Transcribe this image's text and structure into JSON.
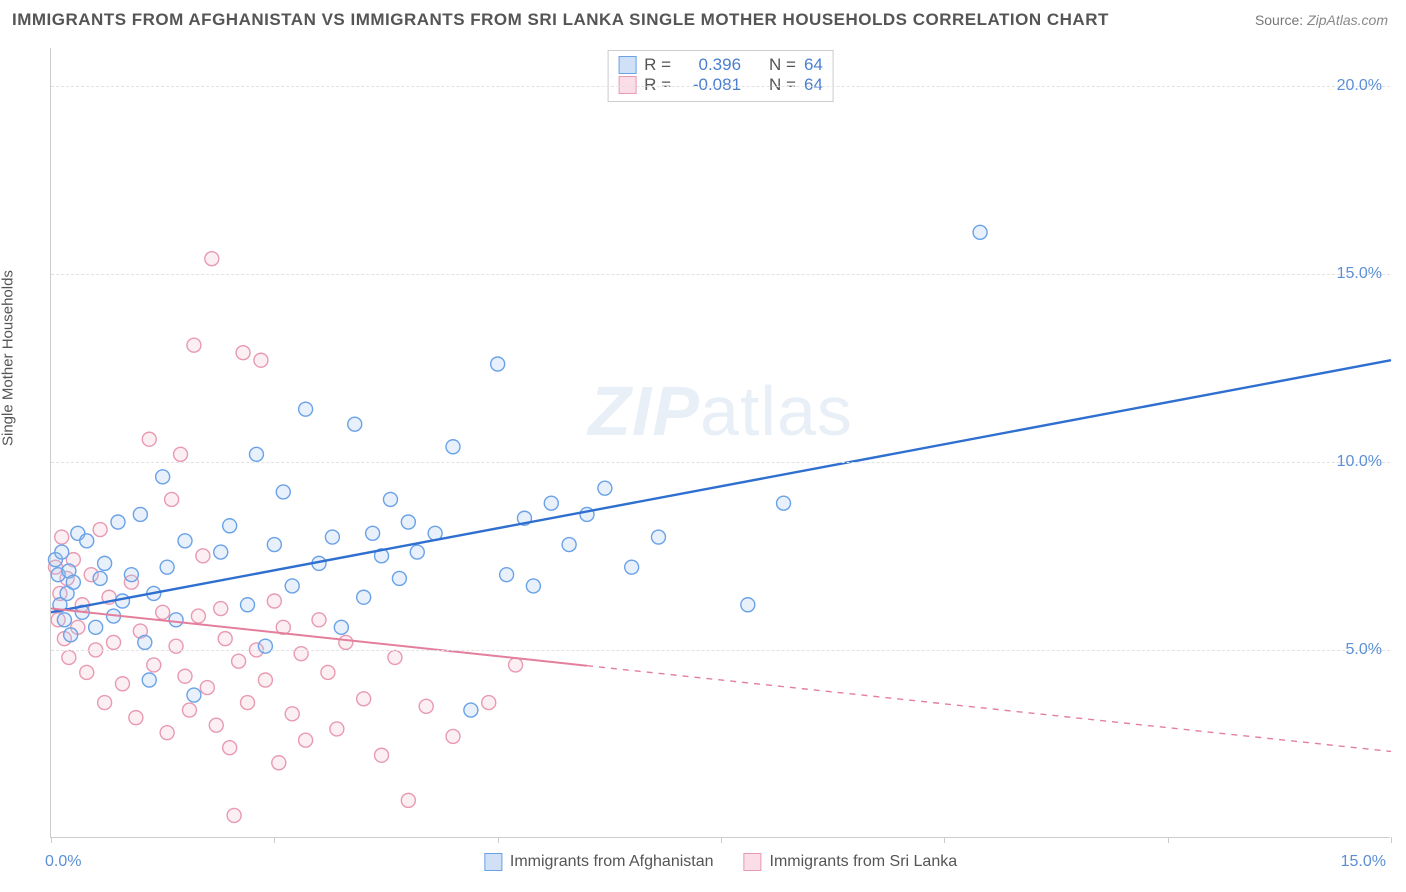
{
  "title": "IMMIGRANTS FROM AFGHANISTAN VS IMMIGRANTS FROM SRI LANKA SINGLE MOTHER HOUSEHOLDS CORRELATION CHART",
  "source_label": "Source:",
  "source_value": "ZipAtlas.com",
  "ylabel": "Single Mother Households",
  "chart": {
    "type": "scatter",
    "xlim": [
      0,
      15
    ],
    "ylim": [
      0,
      21
    ],
    "x_ticks": [
      0,
      2.5,
      5.0,
      7.5,
      10.0,
      12.5,
      15.0
    ],
    "x_tick_labels_shown": {
      "0": "0.0%",
      "15": "15.0%"
    },
    "y_gridlines": [
      5,
      10,
      15,
      20
    ],
    "y_tick_labels": {
      "5": "5.0%",
      "10": "10.0%",
      "15": "15.0%",
      "20": "20.0%"
    },
    "background_color": "#ffffff",
    "grid_color": "#e2e2e2",
    "axis_color": "#cccccc",
    "tick_label_color": "#5b8fd6",
    "marker_radius": 7,
    "marker_stroke_width": 1.4,
    "marker_fill_opacity": 0.28,
    "series": [
      {
        "name": "Immigrants from Afghanistan",
        "color_stroke": "#6aa2e8",
        "color_fill": "#a9c9f2",
        "swatch_border": "#6aa2e8",
        "swatch_fill": "#cfe0f7",
        "R": "0.396",
        "N": "64",
        "trend": {
          "x1": 0,
          "y1": 6.0,
          "x2": 15,
          "y2": 12.7,
          "color": "#2f6fd0",
          "width": 2.4,
          "solid_until_x": 15
        },
        "points": [
          [
            0.05,
            7.4
          ],
          [
            0.08,
            7.0
          ],
          [
            0.1,
            6.2
          ],
          [
            0.12,
            7.6
          ],
          [
            0.15,
            5.8
          ],
          [
            0.18,
            6.5
          ],
          [
            0.2,
            7.1
          ],
          [
            0.22,
            5.4
          ],
          [
            0.25,
            6.8
          ],
          [
            0.3,
            8.1
          ],
          [
            0.35,
            6.0
          ],
          [
            0.4,
            7.9
          ],
          [
            0.5,
            5.6
          ],
          [
            0.55,
            6.9
          ],
          [
            0.6,
            7.3
          ],
          [
            0.7,
            5.9
          ],
          [
            0.75,
            8.4
          ],
          [
            0.8,
            6.3
          ],
          [
            0.9,
            7.0
          ],
          [
            1.0,
            8.6
          ],
          [
            1.05,
            5.2
          ],
          [
            1.15,
            6.5
          ],
          [
            1.25,
            9.6
          ],
          [
            1.3,
            7.2
          ],
          [
            1.4,
            5.8
          ],
          [
            1.5,
            7.9
          ],
          [
            1.6,
            3.8
          ],
          [
            1.9,
            7.6
          ],
          [
            2.0,
            8.3
          ],
          [
            2.2,
            6.2
          ],
          [
            2.3,
            10.2
          ],
          [
            2.4,
            5.1
          ],
          [
            2.5,
            7.8
          ],
          [
            2.6,
            9.2
          ],
          [
            2.7,
            6.7
          ],
          [
            2.85,
            11.4
          ],
          [
            3.0,
            7.3
          ],
          [
            3.15,
            8.0
          ],
          [
            3.25,
            5.6
          ],
          [
            3.4,
            11.0
          ],
          [
            3.5,
            6.4
          ],
          [
            3.6,
            8.1
          ],
          [
            3.7,
            7.5
          ],
          [
            3.8,
            9.0
          ],
          [
            3.9,
            6.9
          ],
          [
            4.0,
            8.4
          ],
          [
            4.1,
            7.6
          ],
          [
            4.3,
            8.1
          ],
          [
            4.5,
            10.4
          ],
          [
            4.7,
            3.4
          ],
          [
            5.0,
            12.6
          ],
          [
            5.1,
            7.0
          ],
          [
            5.3,
            8.5
          ],
          [
            5.4,
            6.7
          ],
          [
            5.6,
            8.9
          ],
          [
            5.8,
            7.8
          ],
          [
            6.0,
            8.6
          ],
          [
            6.2,
            9.3
          ],
          [
            6.5,
            7.2
          ],
          [
            6.8,
            8.0
          ],
          [
            7.8,
            6.2
          ],
          [
            8.2,
            8.9
          ],
          [
            10.4,
            16.1
          ],
          [
            1.1,
            4.2
          ]
        ]
      },
      {
        "name": "Immigrants from Sri Lanka",
        "color_stroke": "#e89ab0",
        "color_fill": "#f5c6d4",
        "swatch_border": "#e89ab0",
        "swatch_fill": "#fadde6",
        "R": "-0.081",
        "N": "64",
        "trend": {
          "x1": 0,
          "y1": 6.1,
          "x2": 15,
          "y2": 2.3,
          "color": "#e37f9d",
          "width": 2.0,
          "solid_until_x": 6.0
        },
        "points": [
          [
            0.05,
            7.2
          ],
          [
            0.08,
            5.8
          ],
          [
            0.1,
            6.5
          ],
          [
            0.12,
            8.0
          ],
          [
            0.15,
            5.3
          ],
          [
            0.18,
            6.9
          ],
          [
            0.2,
            4.8
          ],
          [
            0.25,
            7.4
          ],
          [
            0.3,
            5.6
          ],
          [
            0.35,
            6.2
          ],
          [
            0.4,
            4.4
          ],
          [
            0.45,
            7.0
          ],
          [
            0.5,
            5.0
          ],
          [
            0.55,
            8.2
          ],
          [
            0.6,
            3.6
          ],
          [
            0.65,
            6.4
          ],
          [
            0.7,
            5.2
          ],
          [
            0.8,
            4.1
          ],
          [
            0.9,
            6.8
          ],
          [
            0.95,
            3.2
          ],
          [
            1.0,
            5.5
          ],
          [
            1.1,
            10.6
          ],
          [
            1.15,
            4.6
          ],
          [
            1.25,
            6.0
          ],
          [
            1.3,
            2.8
          ],
          [
            1.35,
            9.0
          ],
          [
            1.4,
            5.1
          ],
          [
            1.45,
            10.2
          ],
          [
            1.5,
            4.3
          ],
          [
            1.55,
            3.4
          ],
          [
            1.6,
            13.1
          ],
          [
            1.65,
            5.9
          ],
          [
            1.7,
            7.5
          ],
          [
            1.75,
            4.0
          ],
          [
            1.8,
            15.4
          ],
          [
            1.85,
            3.0
          ],
          [
            1.9,
            6.1
          ],
          [
            1.95,
            5.3
          ],
          [
            2.0,
            2.4
          ],
          [
            2.1,
            4.7
          ],
          [
            2.15,
            12.9
          ],
          [
            2.2,
            3.6
          ],
          [
            2.3,
            5.0
          ],
          [
            2.35,
            12.7
          ],
          [
            2.4,
            4.2
          ],
          [
            2.5,
            6.3
          ],
          [
            2.55,
            2.0
          ],
          [
            2.6,
            5.6
          ],
          [
            2.7,
            3.3
          ],
          [
            2.8,
            4.9
          ],
          [
            2.85,
            2.6
          ],
          [
            3.0,
            5.8
          ],
          [
            3.1,
            4.4
          ],
          [
            3.2,
            2.9
          ],
          [
            3.3,
            5.2
          ],
          [
            3.5,
            3.7
          ],
          [
            3.7,
            2.2
          ],
          [
            3.85,
            4.8
          ],
          [
            4.0,
            1.0
          ],
          [
            4.2,
            3.5
          ],
          [
            4.5,
            2.7
          ],
          [
            4.9,
            3.6
          ],
          [
            5.2,
            4.6
          ],
          [
            2.05,
            0.6
          ]
        ]
      }
    ]
  },
  "watermark": {
    "zip": "ZIP",
    "atlas": "atlas"
  },
  "legend_top_labels": {
    "R": "R =",
    "N": "N ="
  }
}
